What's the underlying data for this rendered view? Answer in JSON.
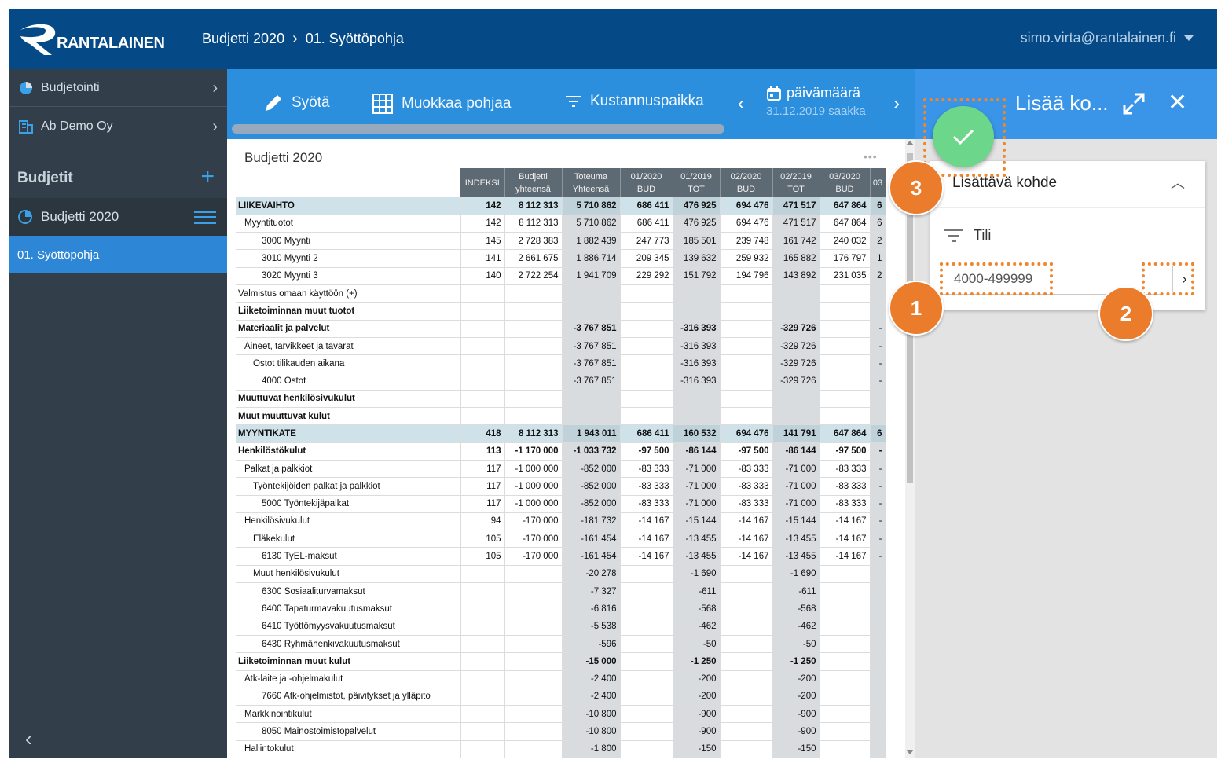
{
  "brand": {
    "name": "RANTALAINEN"
  },
  "header": {
    "breadcrumb": [
      "Budjetti 2020",
      "01. Syöttöpohja"
    ],
    "user": "simo.virta@rantalainen.fi"
  },
  "sidebar": {
    "items": [
      {
        "label": "Budjetointi"
      },
      {
        "label": "Ab Demo Oy"
      }
    ],
    "section_title": "Budjetit",
    "budget": "Budjetti 2020",
    "active": "01. Syöttöpohja"
  },
  "toolbar": {
    "input": "Syötä",
    "edit_template": "Muokkaa pohjaa",
    "cost_center": "Kustannuspaikka",
    "date_label": "päivämäärä",
    "date_value": "31.12.2019 saakka"
  },
  "table": {
    "title": "Budjetti 2020",
    "columns": [
      {
        "l1": "INDEKSI",
        "l2": ""
      },
      {
        "l1": "Budjetti",
        "l2": "yhteensä"
      },
      {
        "l1": "Toteuma",
        "l2": "Yhteensä"
      },
      {
        "l1": "01/2020",
        "l2": "BUD"
      },
      {
        "l1": "01/2019",
        "l2": "TOT"
      },
      {
        "l1": "02/2020",
        "l2": "BUD"
      },
      {
        "l1": "02/2019",
        "l2": "TOT"
      },
      {
        "l1": "03/2020",
        "l2": "BUD"
      },
      {
        "l1": "03",
        "l2": ""
      }
    ],
    "rows": [
      {
        "name": "LIIKEVAIHTO",
        "style": "hl",
        "indent": 0,
        "cells": [
          "142",
          "8 112 313",
          "5 710 862",
          "686 411",
          "476 925",
          "694 476",
          "471 517",
          "647 864",
          "6"
        ]
      },
      {
        "name": "Myyntituotot",
        "style": "",
        "indent": 1,
        "cells": [
          "142",
          "8 112 313",
          "5 710 862",
          "686 411",
          "476 925",
          "694 476",
          "471 517",
          "647 864",
          "6"
        ]
      },
      {
        "name": "3000 Myynti",
        "style": "",
        "indent": 3,
        "cells": [
          "145",
          "2 728 383",
          "1 882 439",
          "247 773",
          "185 501",
          "239 748",
          "161 742",
          "240 032",
          "2"
        ]
      },
      {
        "name": "3010 Myynti 2",
        "style": "",
        "indent": 3,
        "cells": [
          "141",
          "2 661 675",
          "1 886 714",
          "209 345",
          "139 632",
          "259 932",
          "165 882",
          "176 797",
          "1"
        ]
      },
      {
        "name": "3020 Myynti 3",
        "style": "",
        "indent": 3,
        "cells": [
          "140",
          "2 722 254",
          "1 941 709",
          "229 292",
          "151 792",
          "194 796",
          "143 892",
          "231 035",
          "2"
        ]
      },
      {
        "name": "Valmistus omaan käyttöön (+)",
        "style": "",
        "indent": 0,
        "cells": [
          "",
          "",
          "",
          "",
          "",
          "",
          "",
          "",
          ""
        ]
      },
      {
        "name": "Liiketoiminnan muut tuotot",
        "style": "bold",
        "indent": 0,
        "cells": [
          "",
          "",
          "",
          "",
          "",
          "",
          "",
          "",
          ""
        ]
      },
      {
        "name": "Materiaalit ja palvelut",
        "style": "bold",
        "indent": 0,
        "cells": [
          "",
          "",
          "-3 767 851",
          "",
          "-316 393",
          "",
          "-329 726",
          "",
          "-"
        ]
      },
      {
        "name": "Aineet, tarvikkeet ja tavarat",
        "style": "",
        "indent": 1,
        "cells": [
          "",
          "",
          "-3 767 851",
          "",
          "-316 393",
          "",
          "-329 726",
          "",
          "-"
        ]
      },
      {
        "name": "Ostot tilikauden aikana",
        "style": "",
        "indent": 2,
        "cells": [
          "",
          "",
          "-3 767 851",
          "",
          "-316 393",
          "",
          "-329 726",
          "",
          "-"
        ]
      },
      {
        "name": "4000 Ostot",
        "style": "",
        "indent": 3,
        "cells": [
          "",
          "",
          "-3 767 851",
          "",
          "-316 393",
          "",
          "-329 726",
          "",
          "-"
        ]
      },
      {
        "name": "Muuttuvat henkilösivukulut",
        "style": "bold",
        "indent": 0,
        "cells": [
          "",
          "",
          "",
          "",
          "",
          "",
          "",
          "",
          ""
        ]
      },
      {
        "name": "Muut muuttuvat kulut",
        "style": "bold",
        "indent": 0,
        "cells": [
          "",
          "",
          "",
          "",
          "",
          "",
          "",
          "",
          ""
        ]
      },
      {
        "name": "MYYNTIKATE",
        "style": "hl",
        "indent": 0,
        "cells": [
          "418",
          "8 112 313",
          "1 943 011",
          "686 411",
          "160 532",
          "694 476",
          "141 791",
          "647 864",
          "6"
        ]
      },
      {
        "name": "Henkilöstökulut",
        "style": "bold",
        "indent": 0,
        "cells": [
          "113",
          "-1 170 000",
          "-1 033 732",
          "-97 500",
          "-86 144",
          "-97 500",
          "-86 144",
          "-97 500",
          "-"
        ]
      },
      {
        "name": "Palkat ja palkkiot",
        "style": "",
        "indent": 1,
        "cells": [
          "117",
          "-1 000 000",
          "-852 000",
          "-83 333",
          "-71 000",
          "-83 333",
          "-71 000",
          "-83 333",
          "-"
        ]
      },
      {
        "name": "Työntekijöiden palkat ja palkkiot",
        "style": "",
        "indent": 2,
        "cells": [
          "117",
          "-1 000 000",
          "-852 000",
          "-83 333",
          "-71 000",
          "-83 333",
          "-71 000",
          "-83 333",
          "-"
        ]
      },
      {
        "name": "5000 Työntekijäpalkat",
        "style": "",
        "indent": 3,
        "cells": [
          "117",
          "-1 000 000",
          "-852 000",
          "-83 333",
          "-71 000",
          "-83 333",
          "-71 000",
          "-83 333",
          "-"
        ]
      },
      {
        "name": "Henkilösivukulut",
        "style": "",
        "indent": 1,
        "cells": [
          "94",
          "-170 000",
          "-181 732",
          "-14 167",
          "-15 144",
          "-14 167",
          "-15 144",
          "-14 167",
          "-"
        ]
      },
      {
        "name": "Eläkekulut",
        "style": "",
        "indent": 2,
        "cells": [
          "105",
          "-170 000",
          "-161 454",
          "-14 167",
          "-13 455",
          "-14 167",
          "-13 455",
          "-14 167",
          "-"
        ]
      },
      {
        "name": "6130 TyEL-maksut",
        "style": "",
        "indent": 3,
        "cells": [
          "105",
          "-170 000",
          "-161 454",
          "-14 167",
          "-13 455",
          "-14 167",
          "-13 455",
          "-14 167",
          "-"
        ]
      },
      {
        "name": "Muut henkilösivukulut",
        "style": "",
        "indent": 2,
        "cells": [
          "",
          "",
          "-20 278",
          "",
          "-1 690",
          "",
          "-1 690",
          "",
          ""
        ]
      },
      {
        "name": "6300 Sosiaaliturvamaksut",
        "style": "",
        "indent": 3,
        "cells": [
          "",
          "",
          "-7 327",
          "",
          "-611",
          "",
          "-611",
          "",
          ""
        ]
      },
      {
        "name": "6400 Tapaturmavakuutusmaksut",
        "style": "",
        "indent": 3,
        "cells": [
          "",
          "",
          "-6 816",
          "",
          "-568",
          "",
          "-568",
          "",
          ""
        ]
      },
      {
        "name": "6410 Työttömyysvakuutusmaksut",
        "style": "",
        "indent": 3,
        "cells": [
          "",
          "",
          "-5 538",
          "",
          "-462",
          "",
          "-462",
          "",
          ""
        ]
      },
      {
        "name": "6430 Ryhmähenkivakuutusmaksut",
        "style": "",
        "indent": 3,
        "cells": [
          "",
          "",
          "-596",
          "",
          "-50",
          "",
          "-50",
          "",
          ""
        ]
      },
      {
        "name": "Liiketoiminnan muut kulut",
        "style": "bold",
        "indent": 0,
        "cells": [
          "",
          "",
          "-15 000",
          "",
          "-1 250",
          "",
          "-1 250",
          "",
          ""
        ]
      },
      {
        "name": "Atk-laite ja -ohjelmakulut",
        "style": "",
        "indent": 1,
        "cells": [
          "",
          "",
          "-2 400",
          "",
          "-200",
          "",
          "-200",
          "",
          ""
        ]
      },
      {
        "name": "7660 Atk-ohjelmistot, päivitykset ja ylläpito",
        "style": "",
        "indent": 3,
        "cells": [
          "",
          "",
          "-2 400",
          "",
          "-200",
          "",
          "-200",
          "",
          ""
        ]
      },
      {
        "name": "Markkinointikulut",
        "style": "",
        "indent": 1,
        "cells": [
          "",
          "",
          "-10 800",
          "",
          "-900",
          "",
          "-900",
          "",
          ""
        ]
      },
      {
        "name": "8050 Mainostoimistopalvelut",
        "style": "",
        "indent": 3,
        "cells": [
          "",
          "",
          "-10 800",
          "",
          "-900",
          "",
          "-900",
          "",
          ""
        ]
      },
      {
        "name": "Hallintokulut",
        "style": "",
        "indent": 1,
        "cells": [
          "",
          "",
          "-1 800",
          "",
          "-150",
          "",
          "-150",
          "",
          ""
        ]
      }
    ]
  },
  "panel": {
    "title": "Lisää ko...",
    "card_title": "Lisättävä kohde",
    "filter_label": "Tili",
    "range_value": "4000-499999"
  },
  "callouts": [
    "1",
    "2",
    "3"
  ]
}
